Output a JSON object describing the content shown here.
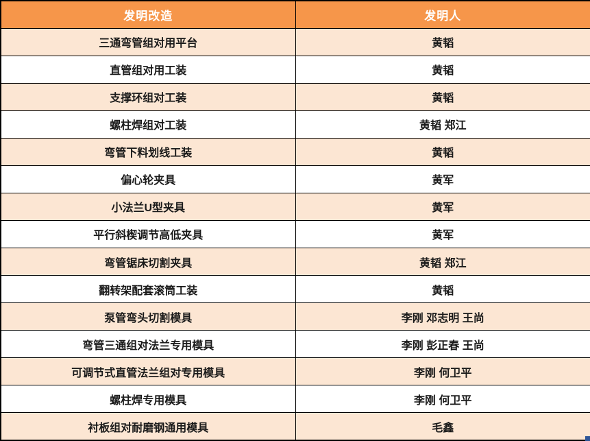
{
  "table": {
    "column_headers": {
      "invention": "发明改造",
      "inventor": "发明人"
    },
    "rows": [
      [
        "三通弯管组对用平台",
        "黄韬"
      ],
      [
        "直管组对用工装",
        "黄韬"
      ],
      [
        "支撑环组对工装",
        "黄韬"
      ],
      [
        "螺柱焊组对工装",
        "黄韬 郑江"
      ],
      [
        "弯管下料划线工装",
        "黄韬"
      ],
      [
        "偏心轮夹具",
        "黄军"
      ],
      [
        "小法兰U型夹具",
        "黄军"
      ],
      [
        "平行斜楔调节高低夹具",
        "黄军"
      ],
      [
        "弯管锯床切割夹具",
        "黄韬 郑江"
      ],
      [
        "翻转架配套滚筒工装",
        "黄韬"
      ],
      [
        "泵管弯头切割模具",
        "李刚 邓志明 王尚"
      ],
      [
        "弯管三通组对法兰专用模具",
        "李刚 彭正春 王尚"
      ],
      [
        "可调节式直管法兰组对专用模具",
        "李刚 何卫平"
      ],
      [
        "螺柱焊专用模具",
        "李刚 何卫平"
      ],
      [
        "衬板组对耐磨钢通用模具",
        "毛鑫"
      ]
    ]
  },
  "colors": {
    "header_bg": "#F6964A",
    "header_text": "#FFFFFF",
    "row_stripe_bg": "#FCE6D3",
    "row_white_bg": "#FFFFFF",
    "border": "#000000",
    "body_text": "#1A1A1A",
    "fill_handle": "#2F5597"
  }
}
